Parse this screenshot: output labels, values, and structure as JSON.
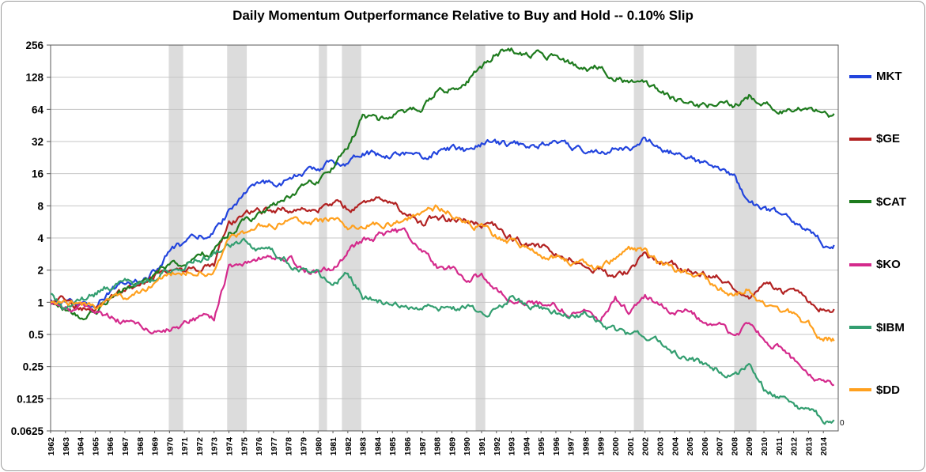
{
  "chart_data": {
    "type": "line",
    "title": "Daily Momentum Outperformance Relative to Buy and Hold -- 0.10% Slip",
    "xlabel": "",
    "ylabel": "",
    "y_scale": "log2",
    "ylim": [
      0.0625,
      256
    ],
    "x_range": [
      1962,
      2015
    ],
    "grid": true,
    "legend_position": "right",
    "right_axis_zero_label": "0",
    "y_ticks": [
      256,
      128,
      64,
      32,
      16,
      8,
      4,
      2,
      1,
      0.5,
      0.25,
      0.125,
      0.0625
    ],
    "y_tick_labels": [
      "256",
      "128",
      "64",
      "32",
      "16",
      "8",
      "4",
      "2",
      "1",
      "0.5",
      "0.25",
      "0.125",
      "0.0625"
    ],
    "years": [
      1962,
      1963,
      1964,
      1965,
      1966,
      1967,
      1968,
      1969,
      1970,
      1971,
      1972,
      1973,
      1974,
      1975,
      1976,
      1977,
      1978,
      1979,
      1980,
      1981,
      1982,
      1983,
      1984,
      1985,
      1986,
      1987,
      1988,
      1989,
      1990,
      1991,
      1992,
      1993,
      1994,
      1995,
      1996,
      1997,
      1998,
      1999,
      2000,
      2001,
      2002,
      2003,
      2004,
      2005,
      2006,
      2007,
      2008,
      2009,
      2010,
      2011,
      2012,
      2013,
      2014
    ],
    "recession_bands": [
      [
        1969.95,
        1970.92
      ],
      [
        1973.88,
        1975.2
      ],
      [
        1980.05,
        1980.6
      ],
      [
        1981.6,
        1982.9
      ],
      [
        1990.6,
        1991.25
      ],
      [
        2001.25,
        2001.9
      ],
      [
        2008.0,
        2009.5
      ]
    ],
    "band_color": "#dcdcdc",
    "grid_color": "#c6c6c6",
    "frame_color": "#595959",
    "series": [
      {
        "name": "MKT",
        "color": "#2244dd",
        "values": [
          1.0,
          0.95,
          0.9,
          0.95,
          1.3,
          1.5,
          1.6,
          1.9,
          3.0,
          3.5,
          4.0,
          4.6,
          7.0,
          11,
          12,
          13,
          14,
          16,
          18,
          20,
          21,
          27,
          24,
          25,
          25,
          22,
          26,
          27,
          26,
          30,
          30,
          30,
          30,
          31,
          30,
          28,
          26,
          27,
          27,
          28,
          33,
          28,
          25,
          22,
          20,
          17,
          14,
          9,
          7.5,
          6.5,
          5.5,
          4.5,
          3.6
        ]
      },
      {
        "name": "$GE",
        "color": "#b22222",
        "values": [
          1.0,
          1.05,
          0.9,
          0.85,
          1.1,
          1.2,
          1.6,
          1.8,
          2.0,
          1.9,
          2.0,
          2.2,
          5.5,
          6.5,
          7.0,
          7.5,
          7.5,
          7.8,
          8.0,
          9.0,
          7.5,
          8.0,
          9.0,
          9.0,
          6.5,
          5.5,
          6.5,
          6.0,
          6.0,
          5.5,
          5.0,
          4.0,
          3.5,
          3.2,
          3.0,
          2.6,
          2.2,
          2.0,
          1.7,
          2.0,
          2.8,
          2.3,
          2.2,
          2.0,
          1.9,
          1.8,
          1.4,
          1.1,
          1.5,
          1.3,
          1.2,
          1.0,
          0.88
        ]
      },
      {
        "name": "$CAT",
        "color": "#1e7b1e",
        "values": [
          1.0,
          0.85,
          0.72,
          0.8,
          1.1,
          1.3,
          1.5,
          1.8,
          2.2,
          2.4,
          2.8,
          3.0,
          4.5,
          5.5,
          6.5,
          8.0,
          9.5,
          12,
          14,
          18,
          28,
          55,
          50,
          55,
          60,
          65,
          95,
          100,
          120,
          160,
          220,
          235,
          215,
          225,
          195,
          170,
          150,
          160,
          130,
          115,
          105,
          90,
          80,
          72,
          70,
          75,
          65,
          85,
          70,
          62,
          60,
          62,
          57
        ]
      },
      {
        "name": "$KO",
        "color": "#d42a8c",
        "values": [
          1.0,
          0.95,
          0.9,
          0.85,
          0.75,
          0.65,
          0.6,
          0.55,
          0.58,
          0.65,
          0.68,
          0.7,
          2.2,
          2.4,
          2.6,
          2.7,
          2.6,
          2.1,
          1.9,
          2.1,
          3.0,
          3.8,
          4.2,
          4.6,
          4.5,
          3.0,
          2.2,
          2.0,
          1.6,
          1.8,
          1.4,
          1.1,
          1.0,
          0.95,
          0.9,
          0.8,
          0.85,
          0.7,
          1.1,
          0.8,
          1.2,
          0.9,
          0.85,
          0.8,
          0.7,
          0.6,
          0.5,
          0.6,
          0.45,
          0.38,
          0.28,
          0.22,
          0.18
        ]
      },
      {
        "name": "$IBM",
        "color": "#339e70",
        "values": [
          1.2,
          0.85,
          1.0,
          1.2,
          1.4,
          1.5,
          1.5,
          1.7,
          2.0,
          2.2,
          2.5,
          2.8,
          3.5,
          3.6,
          3.2,
          2.9,
          2.4,
          2.0,
          1.8,
          1.5,
          1.9,
          1.15,
          1.05,
          0.95,
          0.9,
          0.9,
          0.9,
          0.85,
          0.85,
          0.85,
          0.8,
          1.1,
          0.9,
          0.85,
          0.8,
          0.75,
          0.78,
          0.65,
          0.55,
          0.5,
          0.45,
          0.42,
          0.35,
          0.3,
          0.26,
          0.24,
          0.2,
          0.27,
          0.16,
          0.13,
          0.11,
          0.1,
          0.078
        ]
      },
      {
        "name": "$DD",
        "color": "#ffa01e",
        "values": [
          1.0,
          1.1,
          1.0,
          0.9,
          1.0,
          1.1,
          1.2,
          1.4,
          1.8,
          1.9,
          2.0,
          2.0,
          3.8,
          4.2,
          5.0,
          5.5,
          5.6,
          5.2,
          5.5,
          6.0,
          5.3,
          5.5,
          5.6,
          5.5,
          6.0,
          6.5,
          7.8,
          6.8,
          5.8,
          5.2,
          4.2,
          3.6,
          3.1,
          2.9,
          2.6,
          2.4,
          2.2,
          2.1,
          2.6,
          3.0,
          3.1,
          2.2,
          2.0,
          1.8,
          1.6,
          1.4,
          1.1,
          1.4,
          1.0,
          0.9,
          0.75,
          0.6,
          0.45
        ]
      }
    ]
  }
}
